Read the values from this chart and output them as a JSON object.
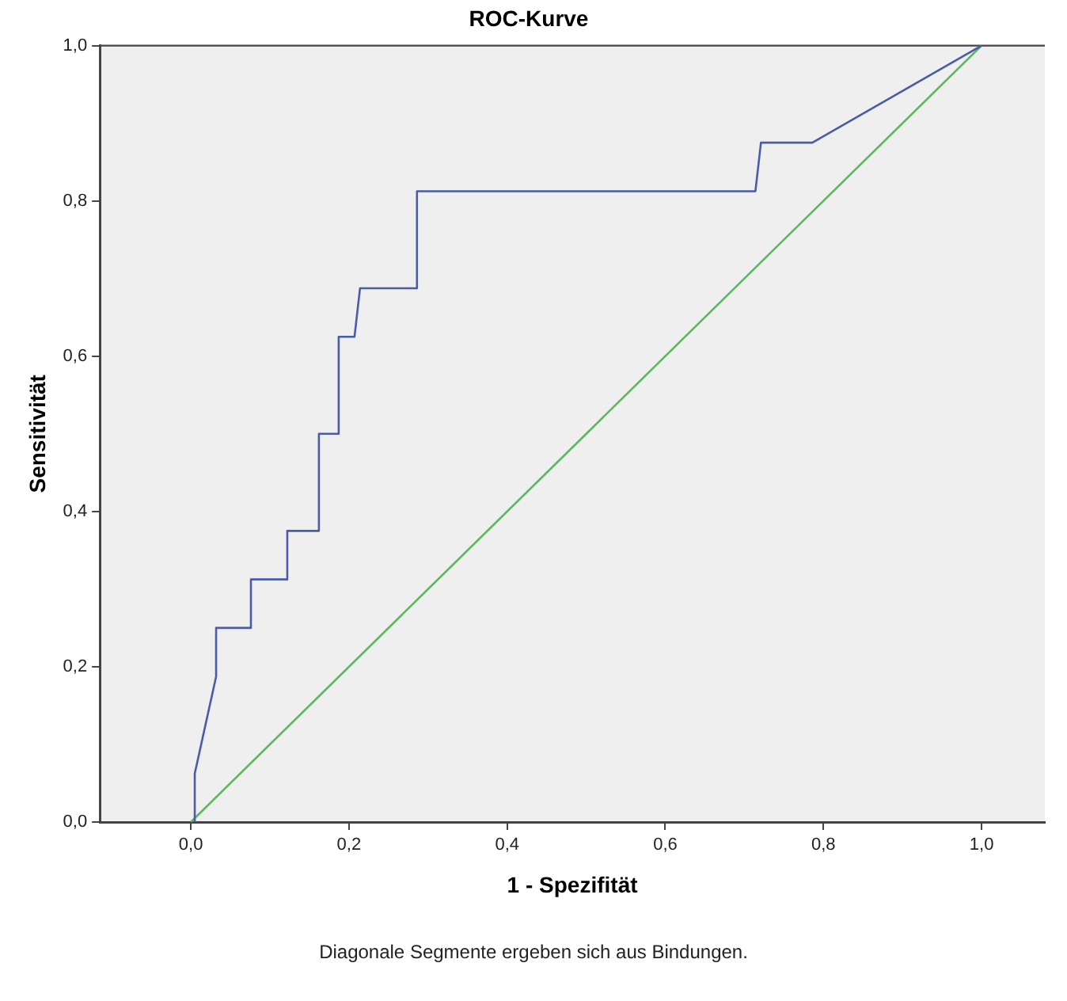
{
  "chart_data": {
    "type": "line",
    "title": "ROC-Kurve",
    "xlabel": "1 - Spezifität",
    "ylabel": "Sensitivität",
    "annotations": [
      "Diagonale Segmente ergeben sich aus Bindungen."
    ],
    "series": [
      {
        "color": "#4a5ca8",
        "x": [
          0.005,
          0.005,
          0.032,
          0.032,
          0.076,
          0.076,
          0.122,
          0.122,
          0.162,
          0.162,
          0.187,
          0.187,
          0.207,
          0.214,
          0.286,
          0.286,
          0.714,
          0.721,
          0.786,
          1.0
        ],
        "values": [
          0,
          0.0625,
          0.1875,
          0.25,
          0.25,
          0.3125,
          0.3125,
          0.375,
          0.375,
          0.5,
          0.5,
          0.625,
          0.625,
          0.6875,
          0.6875,
          0.8125,
          0.8125,
          0.875,
          0.875,
          1.0
        ]
      },
      {
        "color": "#5cb85c",
        "x": [
          0,
          1
        ],
        "values": [
          0,
          1
        ]
      }
    ],
    "xlim": [
      -0.115,
      1.08
    ],
    "ylim": [
      0,
      1
    ],
    "xticks": [
      {
        "value": 0,
        "label": "0,0"
      },
      {
        "value": 0.2,
        "label": "0,2"
      },
      {
        "value": 0.4,
        "label": "0,4"
      },
      {
        "value": 0.6,
        "label": "0,6"
      },
      {
        "value": 0.8,
        "label": "0,8"
      },
      {
        "value": 1,
        "label": "1,0"
      }
    ],
    "yticks": [
      {
        "value": 0,
        "label": "0,0"
      },
      {
        "value": 0.2,
        "label": "0,2"
      },
      {
        "value": 0.4,
        "label": "0,4"
      },
      {
        "value": 0.6,
        "label": "0,6"
      },
      {
        "value": 0.8,
        "label": "0,8"
      },
      {
        "value": 1,
        "label": "1,0"
      }
    ],
    "grid": false,
    "legend": false,
    "marker": "none",
    "line_style": "solid"
  }
}
